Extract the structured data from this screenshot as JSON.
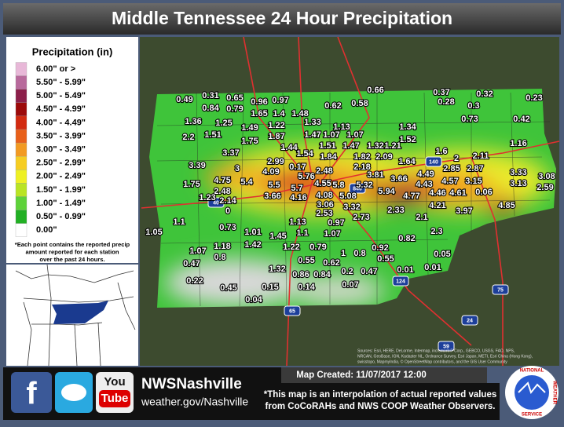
{
  "header": {
    "title": "Middle Tennessee 24 Hour Precipitation"
  },
  "legend": {
    "title": "Precipitation (in)",
    "items": [
      {
        "label": "6.00\" or >",
        "color": "#e8b8d8"
      },
      {
        "label": "5.50\" - 5.99\"",
        "color": "#b86a9c"
      },
      {
        "label": "5.00\" - 5.49\"",
        "color": "#8c1f4a"
      },
      {
        "label": "4.50\" - 4.99\"",
        "color": "#9c0a0a"
      },
      {
        "label": "4.00\" - 4.49\"",
        "color": "#d22a10"
      },
      {
        "label": "3.50\" - 3.99\"",
        "color": "#e8601a"
      },
      {
        "label": "3.00\" - 3.49\"",
        "color": "#f29a22"
      },
      {
        "label": "2.50\" - 2.99\"",
        "color": "#f6cd22"
      },
      {
        "label": "2.00\" - 2.49\"",
        "color": "#eef024"
      },
      {
        "label": "1.50\" - 1.99\"",
        "color": "#b9e424"
      },
      {
        "label": "1.00\" - 1.49\"",
        "color": "#5ed23a"
      },
      {
        "label": "0.50\" - 0.99\"",
        "color": "#22b024"
      },
      {
        "label": "0.00\"",
        "color": "#ffffff"
      }
    ],
    "note": [
      "*Each point contains the reported precip",
      "amount reported for each station",
      "over the past 24 hours."
    ]
  },
  "stations": [
    0.49,
    0.31,
    0.65,
    0.96,
    0.97,
    0.66,
    0.37,
    0.32,
    0.23,
    0.84,
    0.79,
    1.65,
    1.4,
    1.48,
    0.62,
    0.58,
    0.28,
    0.3,
    1.36,
    1.25,
    1.49,
    1.22,
    1.33,
    1.13,
    1.34,
    0.73,
    0.42,
    2.2,
    1.51,
    1.75,
    1.87,
    1.47,
    1.07,
    1.07,
    1.52,
    1.44,
    1.51,
    1.47,
    1.32,
    1.21,
    1.16,
    3.37,
    1.54,
    1.84,
    1.82,
    2.09,
    1.64,
    1.6,
    2,
    2.11,
    3.39,
    3,
    2.99,
    0.17,
    2.48,
    2.18,
    4.49,
    2.85,
    2.87,
    3.33,
    3.08,
    4.09,
    5.76,
    3.81,
    3.66,
    4.57,
    3.15,
    3.13,
    4.75,
    5.4,
    5.5,
    4.55,
    5.8,
    5.32,
    4.43,
    0.06,
    2.59,
    1.75,
    5.7,
    5.94,
    4.46,
    4.61,
    4.77,
    2.48,
    4.08,
    5.08,
    1.23,
    2.14,
    3.66,
    4.16,
    3.06,
    3.32,
    2.33,
    4.21,
    3.97,
    4.85,
    0,
    2.53,
    2.73,
    2.1,
    1.1,
    0.73,
    1.13,
    0.97,
    2.3,
    1.05,
    1.01,
    1.45,
    1.1,
    1.07,
    0.82,
    1.07,
    1.18,
    1.42,
    1.22,
    0.79,
    0.92,
    0.05,
    0.47,
    0.8,
    1,
    0.8,
    0.55,
    0.55,
    0.62,
    0.01,
    1.32,
    0.86,
    0.84,
    0.2,
    0.47,
    0.01,
    0.22,
    0.45,
    0.15,
    0.14,
    0.07,
    0.04
  ],
  "highway_shields": [
    "40",
    "840",
    "140",
    "65",
    "124",
    "75",
    "24",
    "59"
  ],
  "map_created": "Map Created: 11/07/2017 12:00",
  "attribution": [
    "Sources: Esri, HERE, DeLorme, Intermap, increment P Corp., GEBCO, USGS, FAO, NPS,",
    "NRCAN, GeoBase, IGN, Kadaster NL, Ordnance Survey, Esri Japan, METI, Esri China (Hong Kong),",
    "swisstopo, MapmyIndia, © OpenStreetMap contributors, and the GIS User Community"
  ],
  "footer": {
    "social": [
      "f",
      "You",
      "Tube"
    ],
    "handle": "NWSNashville",
    "url": "weather.gov/Nashville",
    "disclaimer": [
      "*This map is an interpolation of actual reported values",
      "from CoCoRAHs and NWS COOP Weather Observers."
    ],
    "logo": [
      "NATIONAL",
      "WEATHER",
      "SERVICE"
    ]
  }
}
